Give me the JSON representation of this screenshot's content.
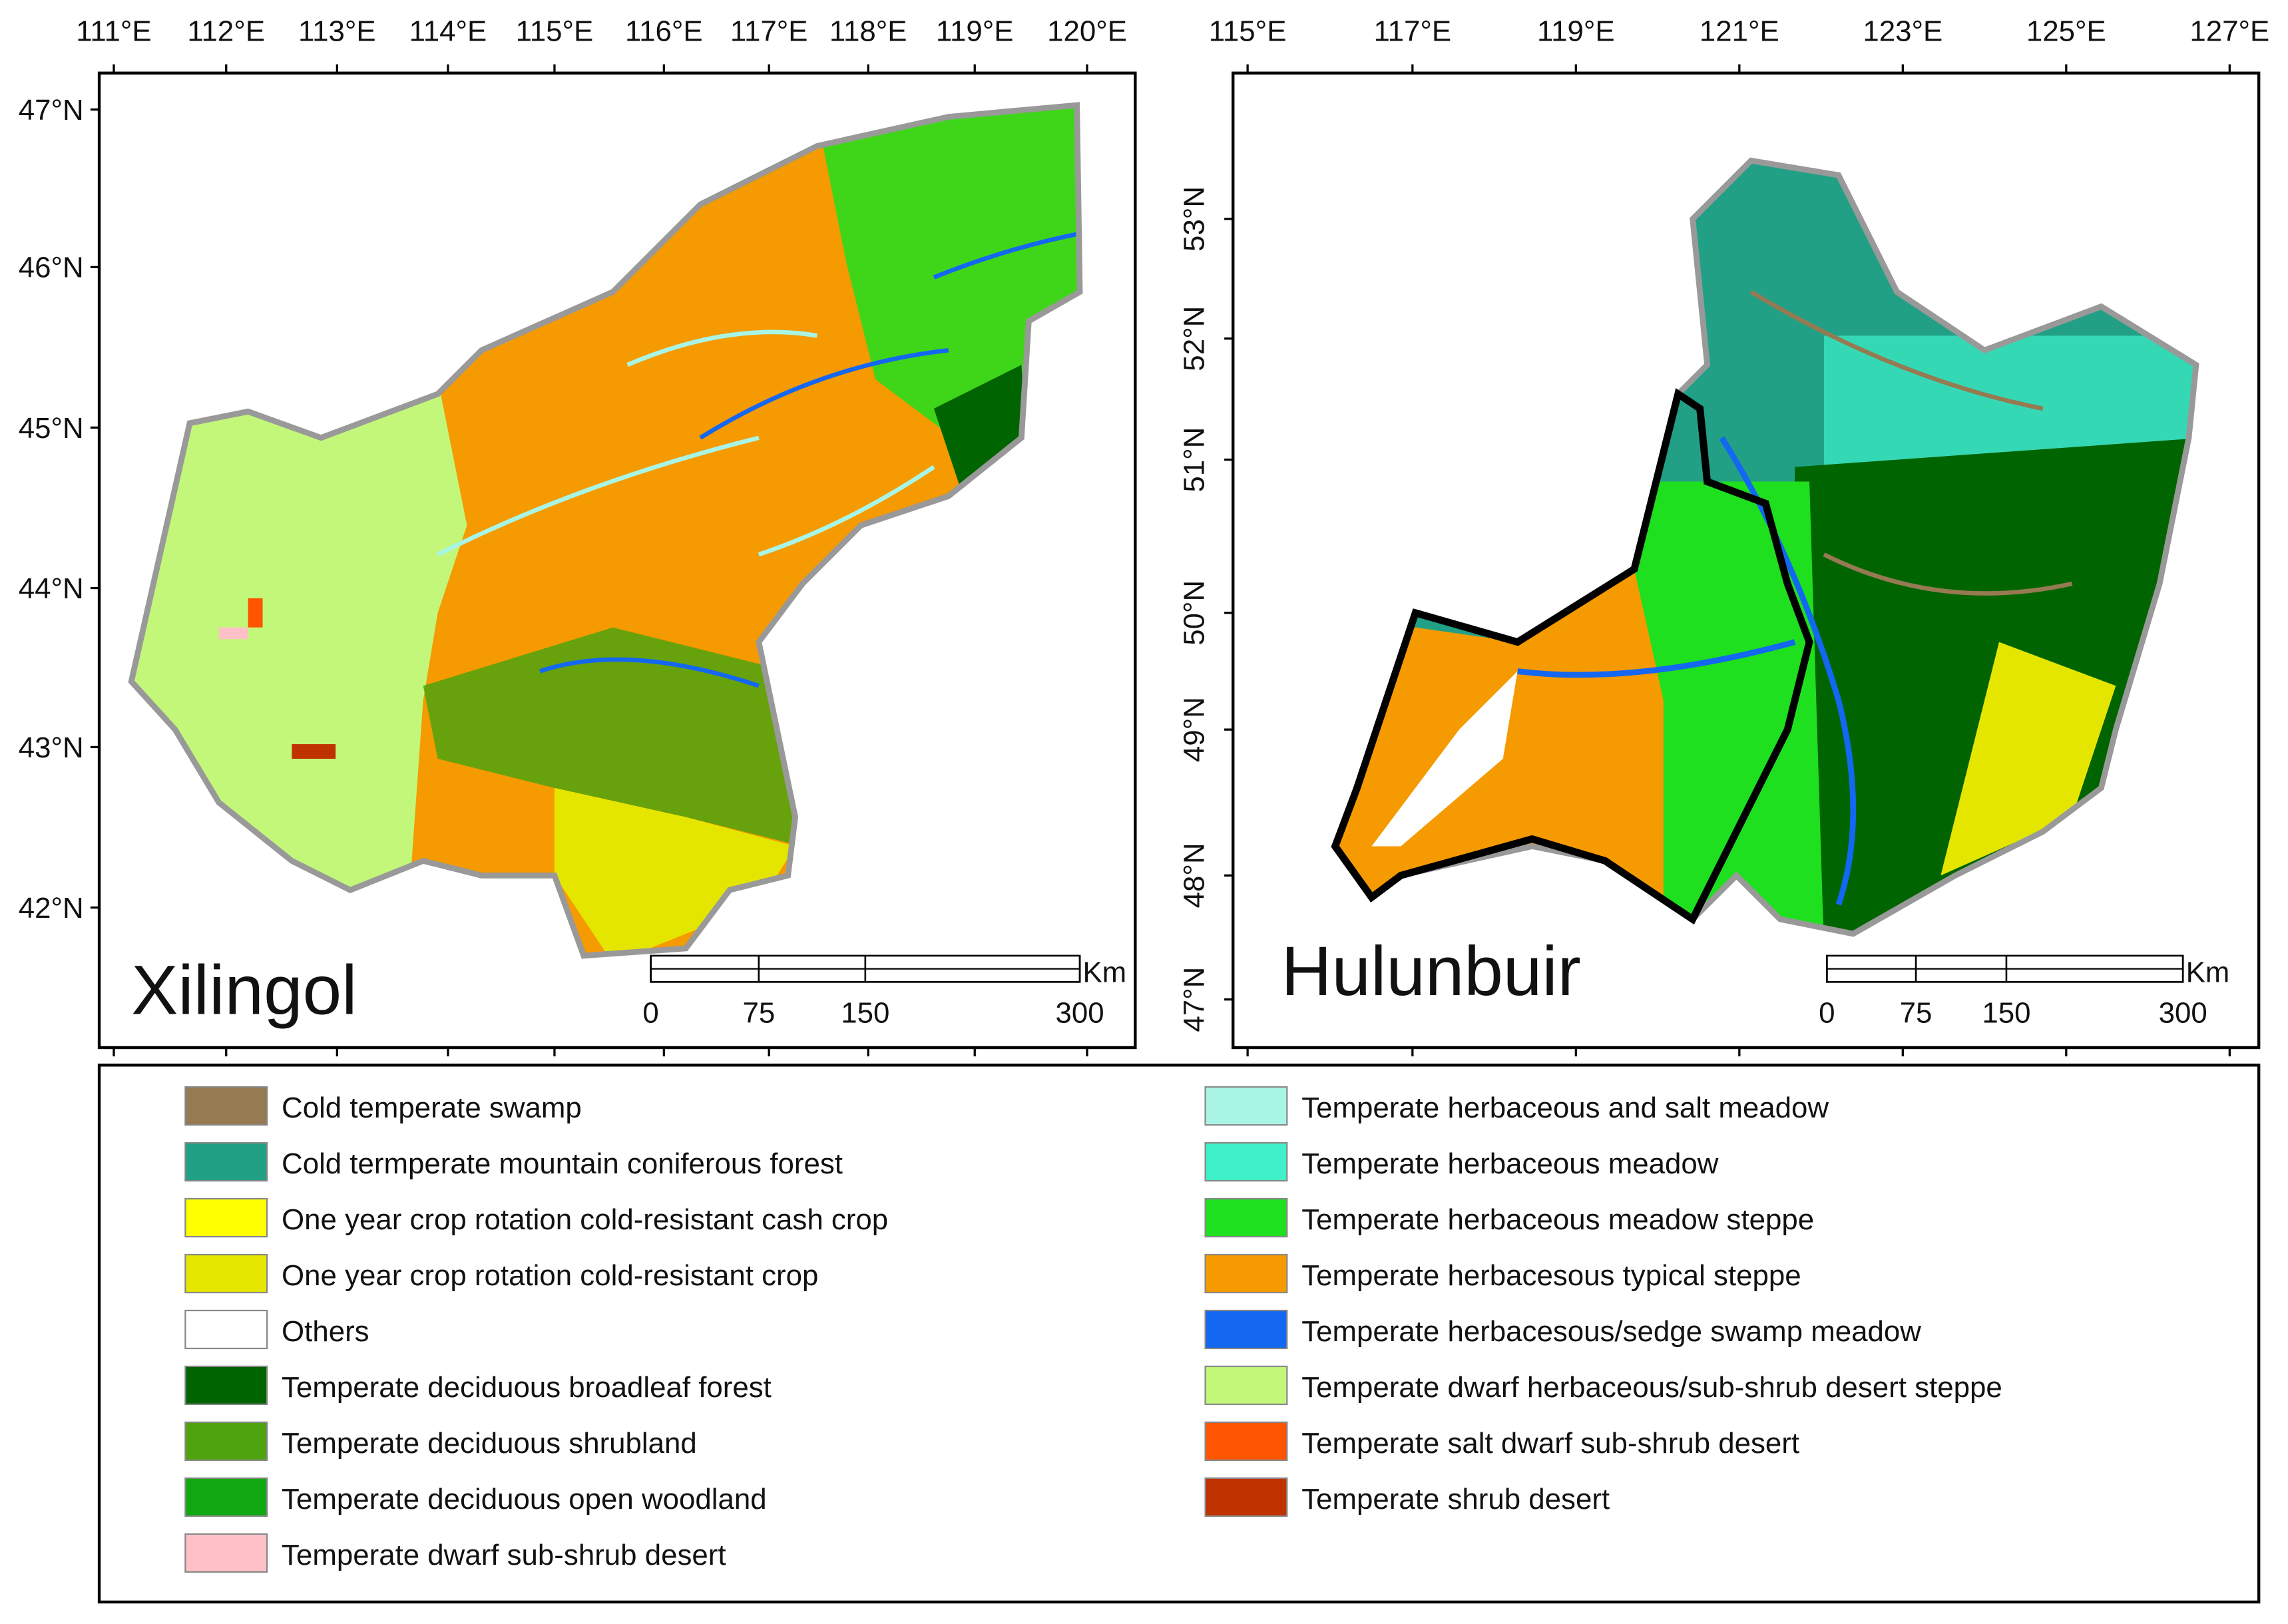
{
  "maps": [
    {
      "title": "Xilingol",
      "lon_labels": [
        "111°E",
        "112°E",
        "113°E",
        "114°E",
        "115°E",
        "116°E",
        "117°E",
        "118°E",
        "119°E",
        "120°E"
      ],
      "lat_labels": [
        "47°N",
        "46°N",
        "45°N",
        "44°N",
        "43°N",
        "42°N"
      ],
      "scale_labels": [
        "0",
        "75",
        "150",
        "300"
      ],
      "scale_unit": "Km"
    },
    {
      "title": "Hulunbuir",
      "lon_labels": [
        "115°E",
        "117°E",
        "119°E",
        "121°E",
        "123°E",
        "125°E",
        "127°E"
      ],
      "lat_labels": [
        "53°N",
        "52°N",
        "51°N",
        "50°N",
        "49°N",
        "48°N",
        "47°N"
      ],
      "scale_labels": [
        "0",
        "75",
        "150",
        "300"
      ],
      "scale_unit": "Km"
    }
  ],
  "legend": {
    "left": [
      {
        "label": "Cold temperate swamp",
        "color": "#957a52"
      },
      {
        "label": "Cold termperate mountain coniferous forest",
        "color": "#21a086"
      },
      {
        "label": "One year crop rotation cold-resistant cash crop",
        "color": "#ffff00"
      },
      {
        "label": "One year crop rotation cold-resistant crop",
        "color": "#e5e600"
      },
      {
        "label": "Others",
        "color": "#ffffff"
      },
      {
        "label": "Temperate deciduous broadleaf forest",
        "color": "#006400"
      },
      {
        "label": "Temperate deciduous shrubland",
        "color": "#4ea30e"
      },
      {
        "label": "Temperate deciduous open woodland",
        "color": "#12a812"
      },
      {
        "label": "Temperate dwarf sub-shrub desert",
        "color": "#ffc0c8"
      }
    ],
    "right": [
      {
        "label": "Temperate herbaceous and salt meadow",
        "color": "#a8f5e6"
      },
      {
        "label": "Temperate herbaceous meadow",
        "color": "#3ff0c8"
      },
      {
        "label": "Temperate herbaceous meadow steppe",
        "color": "#1ee01e"
      },
      {
        "label": "Temperate herbacesous typical steppe",
        "color": "#f59a00"
      },
      {
        "label": "Temperate herbacesous/sedge swamp meadow",
        "color": "#1467f0"
      },
      {
        "label": "Temperate dwarf herbaceous/sub-shrub desert steppe",
        "color": "#c3f77a"
      },
      {
        "label": "Temperate salt dwarf sub-shrub desert",
        "color": "#ff5500"
      },
      {
        "label": "Temperate shrub desert",
        "color": "#c03200"
      }
    ]
  }
}
